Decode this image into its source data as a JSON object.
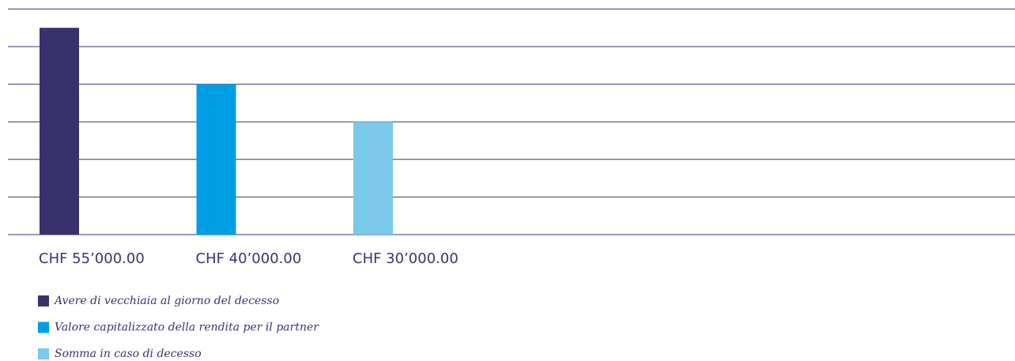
{
  "chart_data": {
    "type": "bar",
    "categories": [
      "Avere di vecchiaia al giorno del decesso",
      "Valore capitalizzato della rendita per il partner",
      "Somma in caso di decesso"
    ],
    "values": [
      55000,
      40000,
      30000
    ],
    "value_labels": [
      "CHF 55’000.00",
      "CHF 40’000.00",
      "CHF 30’000.00"
    ],
    "colors": [
      "#39316e",
      "#009fe3",
      "#7ac8ea"
    ],
    "ylim": [
      0,
      60000
    ],
    "yticks": [
      0,
      10000,
      20000,
      30000,
      40000,
      50000,
      60000
    ],
    "grid": true
  }
}
